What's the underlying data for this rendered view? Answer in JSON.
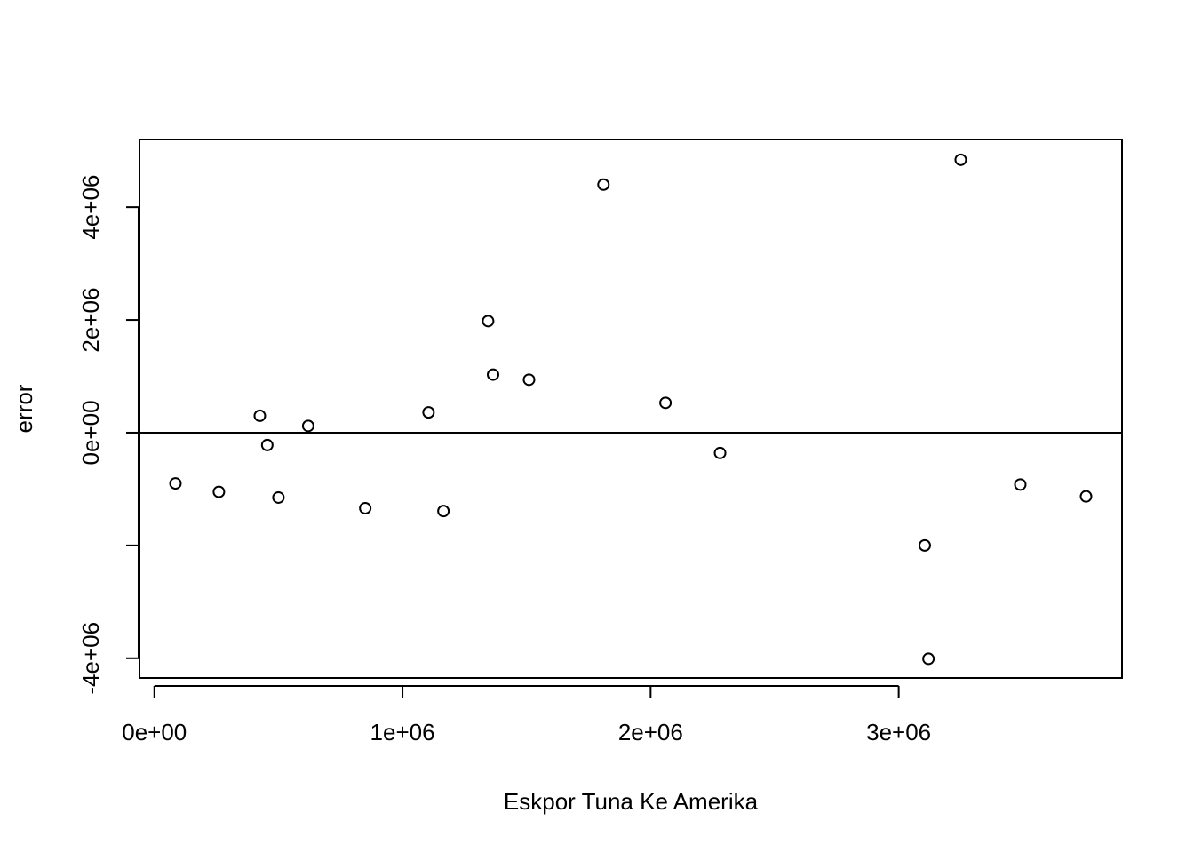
{
  "chart_data": {
    "type": "scatter",
    "title": "",
    "xlabel": "Eskpor Tuna Ke Amerika",
    "ylabel": "error",
    "xlim": [
      -60000,
      3900000
    ],
    "ylim": [
      -4350000,
      5200000
    ],
    "x_ticks": [
      0,
      1000000,
      2000000,
      3000000
    ],
    "x_tick_labels": [
      "0e+00",
      "1e+06",
      "2e+06",
      "3e+06"
    ],
    "y_ticks": [
      -4000000,
      -2000000,
      0,
      2000000,
      4000000
    ],
    "y_tick_labels": [
      "-4e+06",
      "",
      "0e+00",
      "2e+06",
      "4e+06"
    ],
    "reference_line_y": 0,
    "grid": false,
    "points": [
      {
        "x": 85000,
        "y": -900000
      },
      {
        "x": 260000,
        "y": -1050000
      },
      {
        "x": 425000,
        "y": 300000
      },
      {
        "x": 455000,
        "y": -220000
      },
      {
        "x": 500000,
        "y": -1150000
      },
      {
        "x": 620000,
        "y": 120000
      },
      {
        "x": 850000,
        "y": -1340000
      },
      {
        "x": 1105000,
        "y": 360000
      },
      {
        "x": 1165000,
        "y": -1390000
      },
      {
        "x": 1345000,
        "y": 1980000
      },
      {
        "x": 1365000,
        "y": 1030000
      },
      {
        "x": 1510000,
        "y": 940000
      },
      {
        "x": 1810000,
        "y": 4400000
      },
      {
        "x": 2060000,
        "y": 530000
      },
      {
        "x": 2280000,
        "y": -360000
      },
      {
        "x": 3105000,
        "y": -2000000
      },
      {
        "x": 3120000,
        "y": -4010000
      },
      {
        "x": 3250000,
        "y": 4840000
      },
      {
        "x": 3490000,
        "y": -920000
      },
      {
        "x": 3755000,
        "y": -1130000
      }
    ]
  }
}
